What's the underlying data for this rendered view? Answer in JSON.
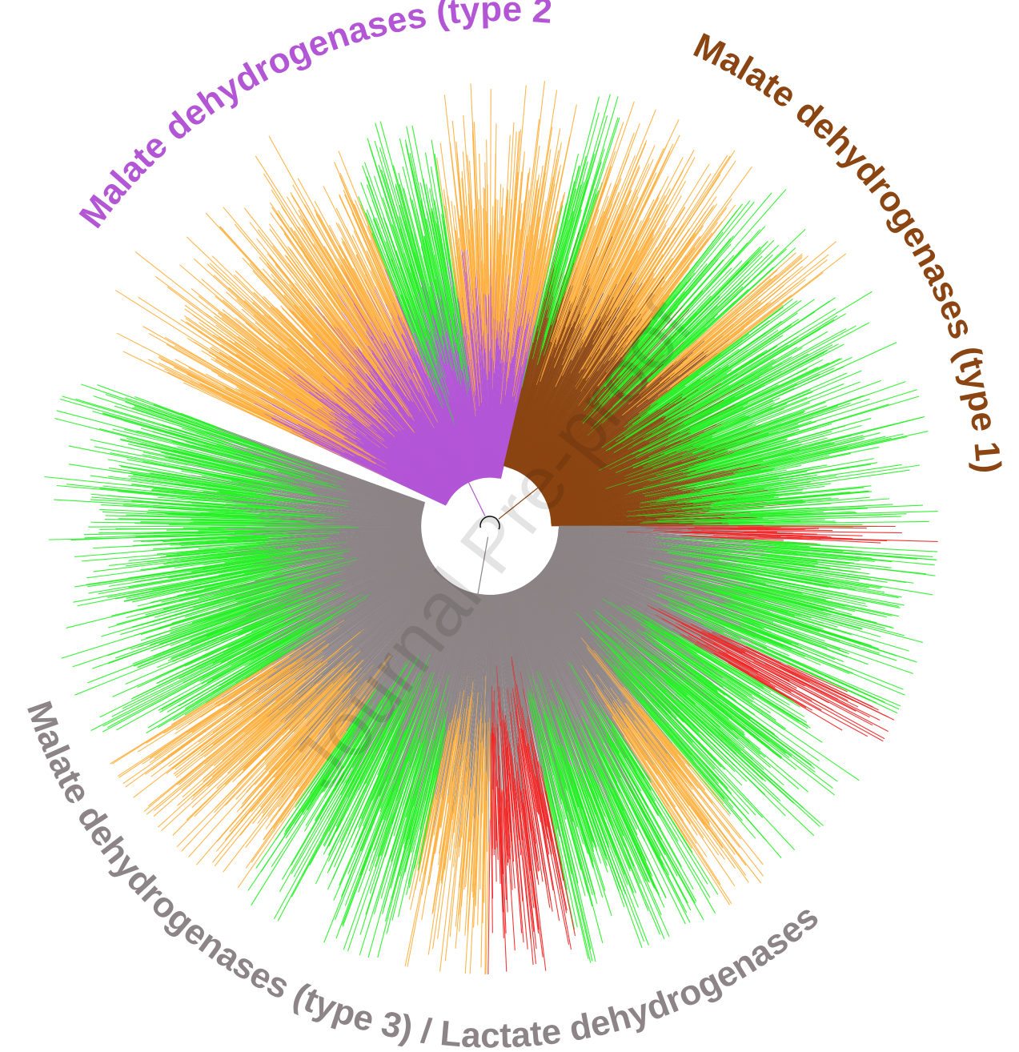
{
  "figure": {
    "clade_labels": {
      "type2": "Malate dehydrogenases (type 2)",
      "type1": "Malate dehydrogenases (type 1)",
      "type3": "Malate dehydrogenases (type 3) / Lactate dehydrogenases"
    },
    "watermark": "Journal Pre-proof",
    "colors": {
      "type2": "#b356d6",
      "type1": "#8b4513",
      "type3": "#8c8486",
      "orange": "#ffae3b",
      "green": "#22f022",
      "red": "#ee2222"
    },
    "clades": [
      {
        "key": "type2",
        "branch_color": "#b356d6",
        "sectors": [
          {
            "start": 205,
            "end": 225,
            "tip": "orange"
          },
          {
            "start": 225,
            "end": 238,
            "tip": "orange"
          },
          {
            "start": 238,
            "end": 248,
            "tip": "orange"
          },
          {
            "start": 248,
            "end": 262,
            "tip": "green"
          },
          {
            "start": 262,
            "end": 283,
            "tip": "orange"
          }
        ]
      },
      {
        "key": "type1",
        "branch_color": "#8b4513",
        "sectors": [
          {
            "start": 283,
            "end": 288,
            "tip": "green"
          },
          {
            "start": 288,
            "end": 308,
            "tip": "orange"
          },
          {
            "start": 308,
            "end": 318,
            "tip": "green"
          },
          {
            "start": 318,
            "end": 323,
            "tip": "orange"
          },
          {
            "start": 323,
            "end": 345,
            "tip": "green"
          },
          {
            "start": 345,
            "end": 360,
            "tip": "green"
          }
        ]
      },
      {
        "key": "type3",
        "branch_color": "#8c8486",
        "sectors": [
          {
            "start": 0,
            "end": 3,
            "tip": "red"
          },
          {
            "start": 3,
            "end": 25,
            "tip": "green"
          },
          {
            "start": 25,
            "end": 30,
            "tip": "red"
          },
          {
            "start": 30,
            "end": 50,
            "tip": "green"
          },
          {
            "start": 50,
            "end": 58,
            "tip": "orange"
          },
          {
            "start": 58,
            "end": 78,
            "tip": "green"
          },
          {
            "start": 78,
            "end": 90,
            "tip": "red"
          },
          {
            "start": 90,
            "end": 102,
            "tip": "orange"
          },
          {
            "start": 102,
            "end": 125,
            "tip": "green"
          },
          {
            "start": 125,
            "end": 148,
            "tip": "orange"
          },
          {
            "start": 148,
            "end": 185,
            "tip": "green"
          },
          {
            "start": 185,
            "end": 200,
            "tip": "green"
          }
        ]
      }
    ]
  }
}
